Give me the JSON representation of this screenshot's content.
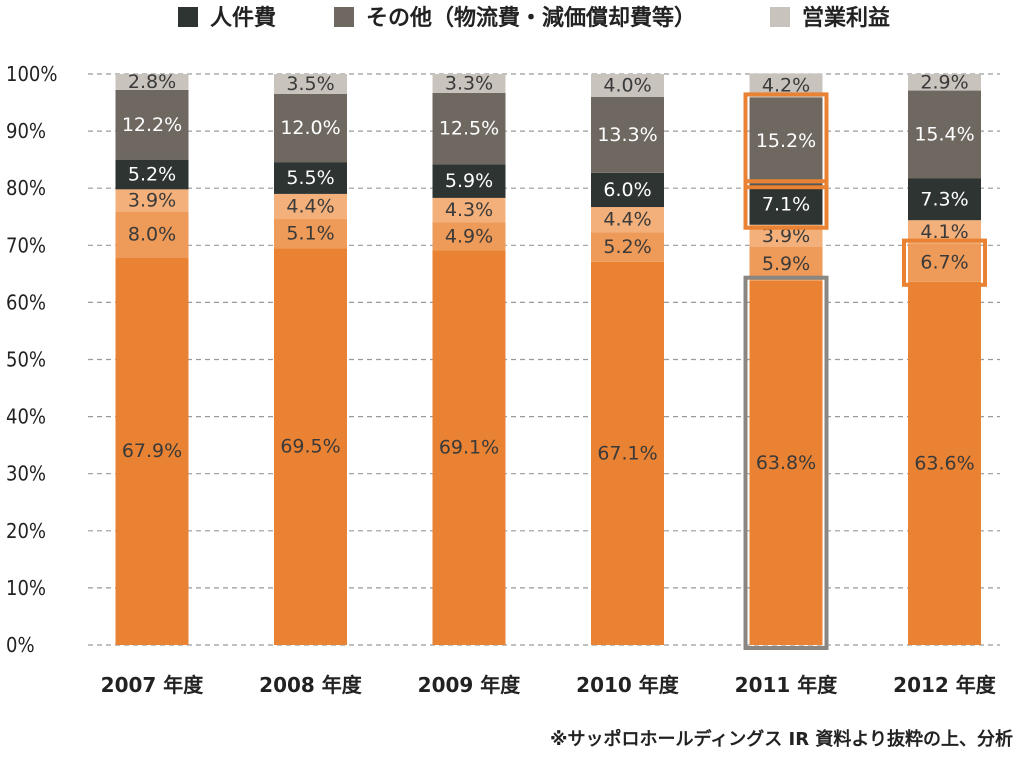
{
  "chart_data": {
    "type": "bar",
    "stacked": true,
    "categories": [
      "2007 年度",
      "2008 年度",
      "2009 年度",
      "2010 年度",
      "2011 年度",
      "2012 年度"
    ],
    "series": [
      {
        "key": "s1",
        "values": [
          67.9,
          69.5,
          69.1,
          67.1,
          63.8,
          63.6
        ],
        "color": "#E98233",
        "label_color": "#3a3a3a"
      },
      {
        "key": "s2",
        "values": [
          8.0,
          5.1,
          4.9,
          5.2,
          5.9,
          6.7
        ],
        "color": "#EE9A58",
        "label_color": "#3a3a3a"
      },
      {
        "key": "s3",
        "values": [
          3.9,
          4.4,
          4.3,
          4.4,
          3.9,
          4.1
        ],
        "color": "#F3B07A",
        "label_color": "#3a3a3a"
      },
      {
        "name": "人件費",
        "key": "s4",
        "values": [
          5.2,
          5.5,
          5.9,
          6.0,
          7.1,
          7.3
        ],
        "color": "#2E3432",
        "label_color": "#ffffff"
      },
      {
        "name": "その他（物流費・減価償却費等）",
        "key": "s5",
        "values": [
          12.2,
          12.0,
          12.5,
          13.3,
          15.2,
          15.4
        ],
        "color": "#6E6861",
        "label_color": "#ffffff"
      },
      {
        "name": "営業利益",
        "key": "s6",
        "values": [
          2.8,
          3.5,
          3.3,
          4.0,
          4.2,
          2.9
        ],
        "color": "#C9C3BD",
        "label_color": "#3a3a3a"
      }
    ],
    "ylim": [
      0,
      100
    ],
    "yticks": [
      0,
      10,
      20,
      30,
      40,
      50,
      60,
      70,
      80,
      90,
      100
    ],
    "ytick_labels": [
      "0%",
      "10%",
      "20%",
      "30%",
      "40%",
      "50%",
      "60%",
      "70%",
      "80%",
      "90%",
      "100%"
    ],
    "value_suffix": "%",
    "grid": "horizontal-dashed",
    "legend_position": "top",
    "highlights": [
      {
        "category_index": 4,
        "series_key": "s1",
        "color": "#8A8782"
      },
      {
        "category_index": 4,
        "series_key": "s4",
        "color": "#E98233"
      },
      {
        "category_index": 4,
        "series_key": "s5",
        "color": "#E98233"
      },
      {
        "category_index": 5,
        "series_key": "s2",
        "color": "#E98233"
      }
    ]
  },
  "source_note": "※サッポロホールディングス IR 資料より抜粋の上、分析"
}
